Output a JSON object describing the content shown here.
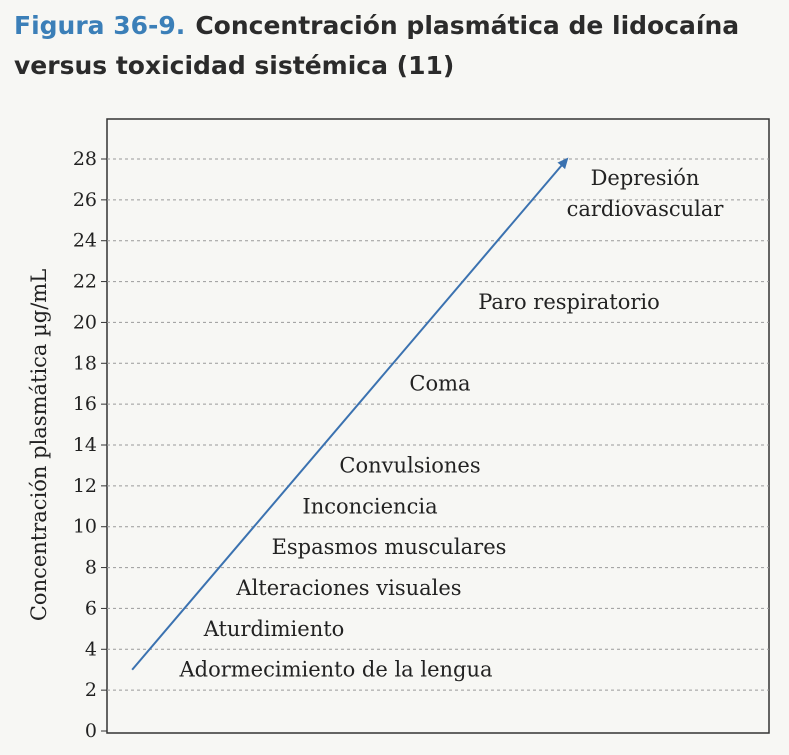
{
  "figure": {
    "number": "Figura 36-9.",
    "title_line1": "Concentración plasmática de lidocaína",
    "title_line2": "versus toxicidad sistémica (11)"
  },
  "chart_data": {
    "type": "line",
    "title": "Concentración plasmática de lidocaína versus toxicidad sistémica (11)",
    "ylabel": "Concentración plasmática µg/mL",
    "xlabel": "",
    "ylim": [
      0,
      30
    ],
    "yticks": [
      0,
      2,
      4,
      6,
      8,
      10,
      12,
      14,
      16,
      18,
      20,
      22,
      24,
      26,
      28
    ],
    "grid": true,
    "arrow": {
      "y_start": 3,
      "y_end": 28
    },
    "annotations": [
      {
        "text": "Adormecimiento de la lengua",
        "y": 3
      },
      {
        "text": "Aturdimiento",
        "y": 5
      },
      {
        "text": "Alteraciones visuales",
        "y": 7
      },
      {
        "text": "Espasmos musculares",
        "y": 9
      },
      {
        "text": "Inconciencia",
        "y": 11
      },
      {
        "text": "Convulsiones",
        "y": 13
      },
      {
        "text": "Coma",
        "y": 17
      },
      {
        "text": "Paro respiratorio",
        "y": 21
      },
      {
        "text": "Depresión",
        "text2": "cardiovascular",
        "y": 26
      }
    ],
    "colors": {
      "arrow": "#3b72b0",
      "grid": "#9a9a9a",
      "axis": "#333333"
    }
  }
}
